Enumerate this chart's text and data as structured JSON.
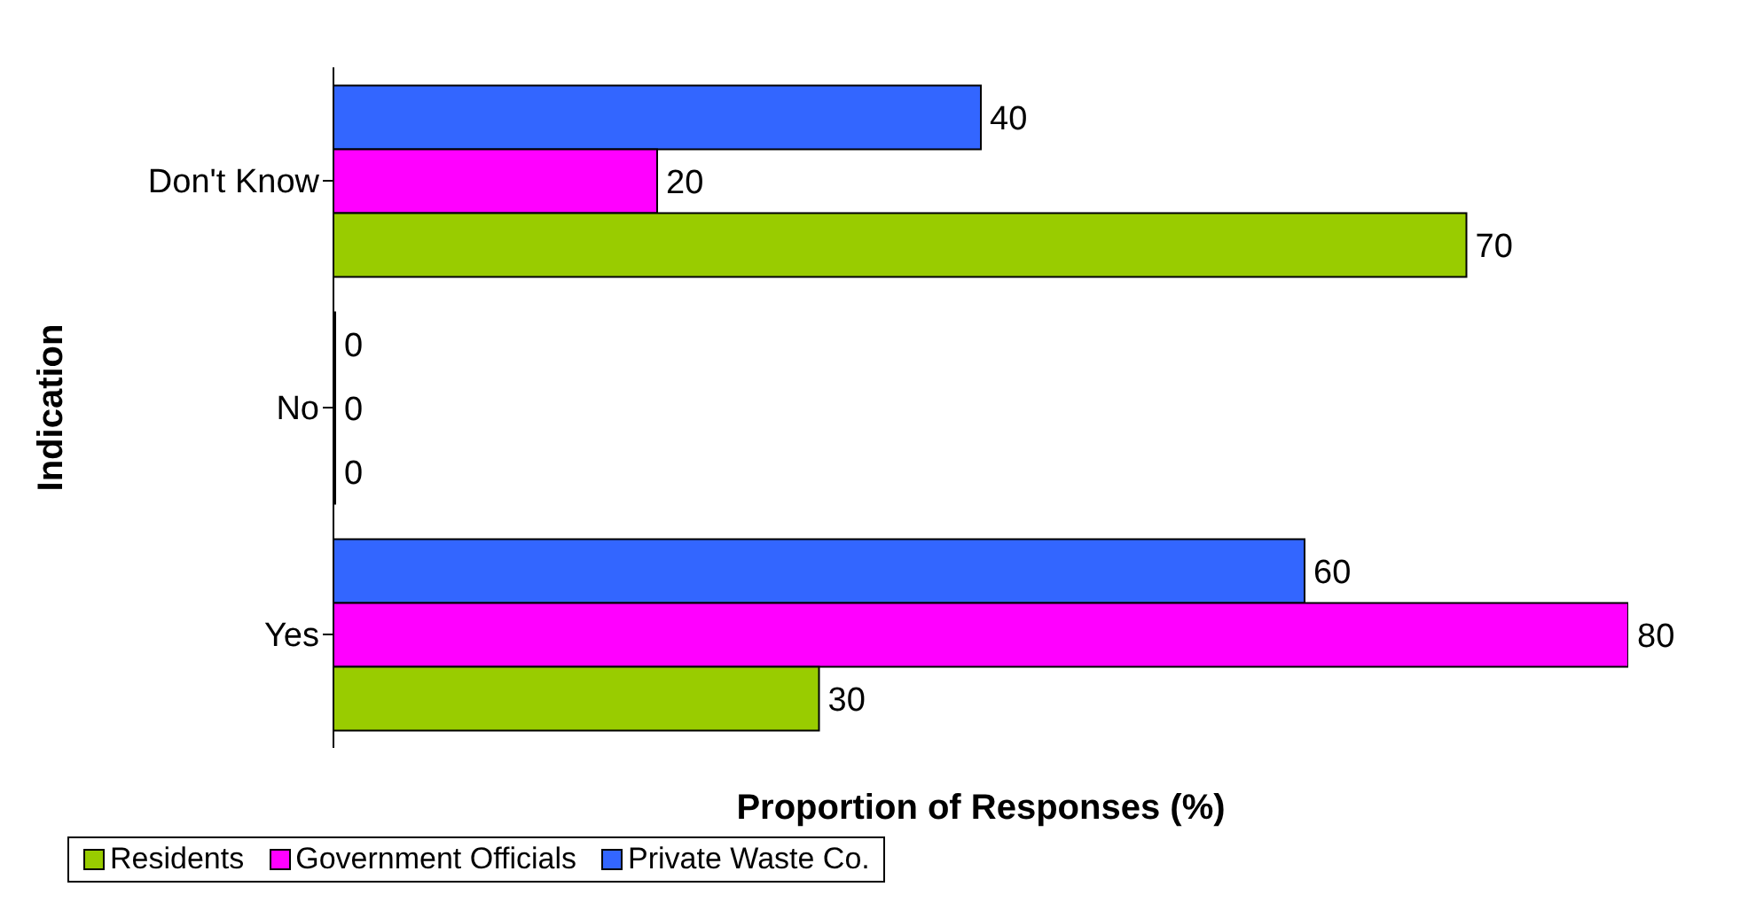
{
  "chart_data": {
    "type": "bar",
    "orientation": "horizontal",
    "categories": [
      "Don't Know",
      "No",
      "Yes"
    ],
    "xlabel": "Proportion of Responses (%)",
    "ylabel": "Indication",
    "series": [
      {
        "name": "Residents",
        "color": "#99cc00",
        "values": [
          70,
          0,
          30
        ]
      },
      {
        "name": "Government Officials",
        "color": "#ff00ff",
        "values": [
          20,
          0,
          80
        ]
      },
      {
        "name": "Private Waste Co.",
        "color": "#3366ff",
        "values": [
          40,
          0,
          60
        ]
      }
    ],
    "data_labels": true,
    "legend": "bottom",
    "tick_labels": "y",
    "grid": false
  }
}
